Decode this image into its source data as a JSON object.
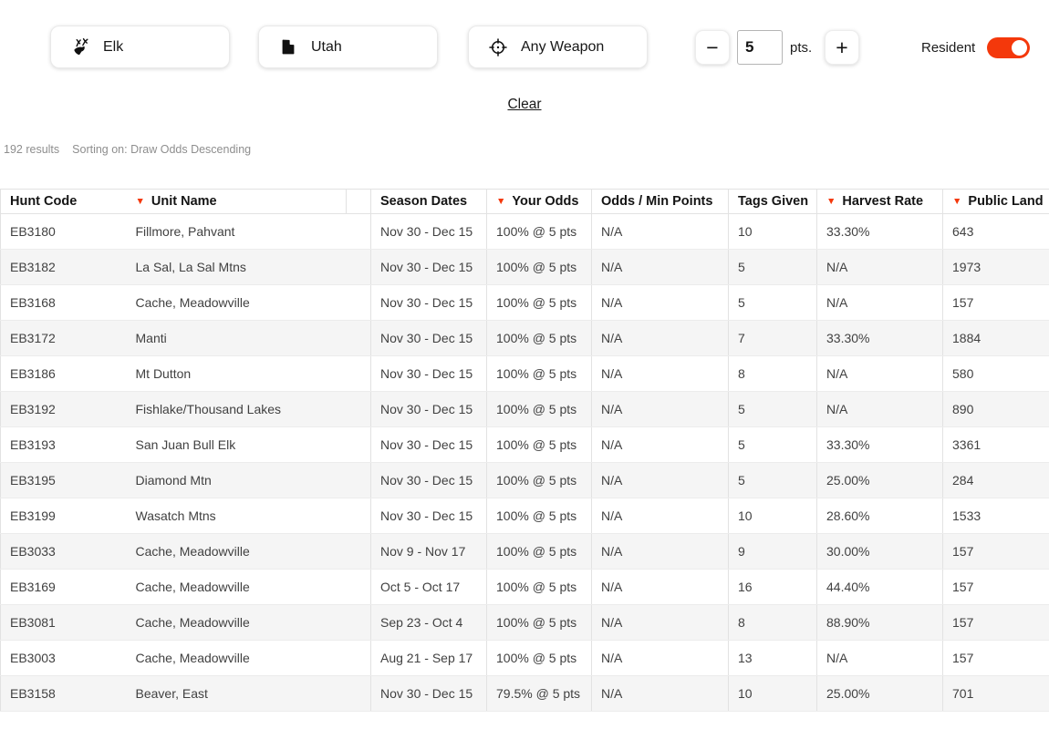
{
  "filters": {
    "species": {
      "label": "Elk",
      "icon": "elk-icon"
    },
    "state": {
      "label": "Utah",
      "icon": "utah-state-icon"
    },
    "weapon": {
      "label": "Any Weapon",
      "icon": "crosshair-icon"
    },
    "points": {
      "value": "5",
      "unit": "pts.",
      "minus_label": "−",
      "plus_label": "+"
    },
    "resident": {
      "label": "Resident",
      "enabled": true
    },
    "clear_label": "Clear"
  },
  "results_bar": {
    "count": "192 results",
    "sorting": "Sorting on: Draw Odds Descending"
  },
  "table": {
    "columns": [
      {
        "key": "code",
        "label": "Hunt Code",
        "sorted": false
      },
      {
        "key": "unit",
        "label": "Unit Name",
        "sorted": true
      },
      {
        "key": "season",
        "label": "Season Dates",
        "sorted": false
      },
      {
        "key": "odds",
        "label": "Your Odds",
        "sorted": true
      },
      {
        "key": "oddsmin",
        "label": "Odds / Min Points",
        "sorted": false
      },
      {
        "key": "tags",
        "label": "Tags Given",
        "sorted": false
      },
      {
        "key": "harvest",
        "label": "Harvest Rate",
        "sorted": true
      },
      {
        "key": "public",
        "label": "Public Land",
        "sorted": true
      }
    ],
    "rows": [
      {
        "code": "EB3180",
        "unit": "Fillmore, Pahvant",
        "season": "Nov 30 - Dec 15",
        "odds": "100% @ 5 pts",
        "oddsmin": "N/A",
        "tags": "10",
        "harvest": "33.30%",
        "public": "643"
      },
      {
        "code": "EB3182",
        "unit": "La Sal, La Sal Mtns",
        "season": "Nov 30 - Dec 15",
        "odds": "100% @ 5 pts",
        "oddsmin": "N/A",
        "tags": "5",
        "harvest": "N/A",
        "public": "1973"
      },
      {
        "code": "EB3168",
        "unit": "Cache, Meadowville",
        "season": "Nov 30 - Dec 15",
        "odds": "100% @ 5 pts",
        "oddsmin": "N/A",
        "tags": "5",
        "harvest": "N/A",
        "public": "157"
      },
      {
        "code": "EB3172",
        "unit": "Manti",
        "season": "Nov 30 - Dec 15",
        "odds": "100% @ 5 pts",
        "oddsmin": "N/A",
        "tags": "7",
        "harvest": "33.30%",
        "public": "1884"
      },
      {
        "code": "EB3186",
        "unit": "Mt Dutton",
        "season": "Nov 30 - Dec 15",
        "odds": "100% @ 5 pts",
        "oddsmin": "N/A",
        "tags": "8",
        "harvest": "N/A",
        "public": "580"
      },
      {
        "code": "EB3192",
        "unit": "Fishlake/Thousand Lakes",
        "season": "Nov 30 - Dec 15",
        "odds": "100% @ 5 pts",
        "oddsmin": "N/A",
        "tags": "5",
        "harvest": "N/A",
        "public": "890"
      },
      {
        "code": "EB3193",
        "unit": "San Juan Bull Elk",
        "season": "Nov 30 - Dec 15",
        "odds": "100% @ 5 pts",
        "oddsmin": "N/A",
        "tags": "5",
        "harvest": "33.30%",
        "public": "3361"
      },
      {
        "code": "EB3195",
        "unit": "Diamond Mtn",
        "season": "Nov 30 - Dec 15",
        "odds": "100% @ 5 pts",
        "oddsmin": "N/A",
        "tags": "5",
        "harvest": "25.00%",
        "public": "284"
      },
      {
        "code": "EB3199",
        "unit": "Wasatch Mtns",
        "season": "Nov 30 - Dec 15",
        "odds": "100% @ 5 pts",
        "oddsmin": "N/A",
        "tags": "10",
        "harvest": "28.60%",
        "public": "1533"
      },
      {
        "code": "EB3033",
        "unit": "Cache, Meadowville",
        "season": "Nov 9 - Nov 17",
        "odds": "100% @ 5 pts",
        "oddsmin": "N/A",
        "tags": "9",
        "harvest": "30.00%",
        "public": "157"
      },
      {
        "code": "EB3169",
        "unit": "Cache, Meadowville",
        "season": "Oct 5 - Oct 17",
        "odds": "100% @ 5 pts",
        "oddsmin": "N/A",
        "tags": "16",
        "harvest": "44.40%",
        "public": "157"
      },
      {
        "code": "EB3081",
        "unit": "Cache, Meadowville",
        "season": "Sep 23 - Oct 4",
        "odds": "100% @ 5 pts",
        "oddsmin": "N/A",
        "tags": "8",
        "harvest": "88.90%",
        "public": "157"
      },
      {
        "code": "EB3003",
        "unit": "Cache, Meadowville",
        "season": "Aug 21 - Sep 17",
        "odds": "100% @ 5 pts",
        "oddsmin": "N/A",
        "tags": "13",
        "harvest": "N/A",
        "public": "157"
      },
      {
        "code": "EB3158",
        "unit": "Beaver, East",
        "season": "Nov 30 - Dec 15",
        "odds": "79.5% @ 5 pts",
        "oddsmin": "N/A",
        "tags": "10",
        "harvest": "25.00%",
        "public": "701"
      }
    ]
  },
  "colors": {
    "accent": "#f4380b",
    "stripe": "#f5f5f5",
    "border": "#e2e2e2"
  }
}
